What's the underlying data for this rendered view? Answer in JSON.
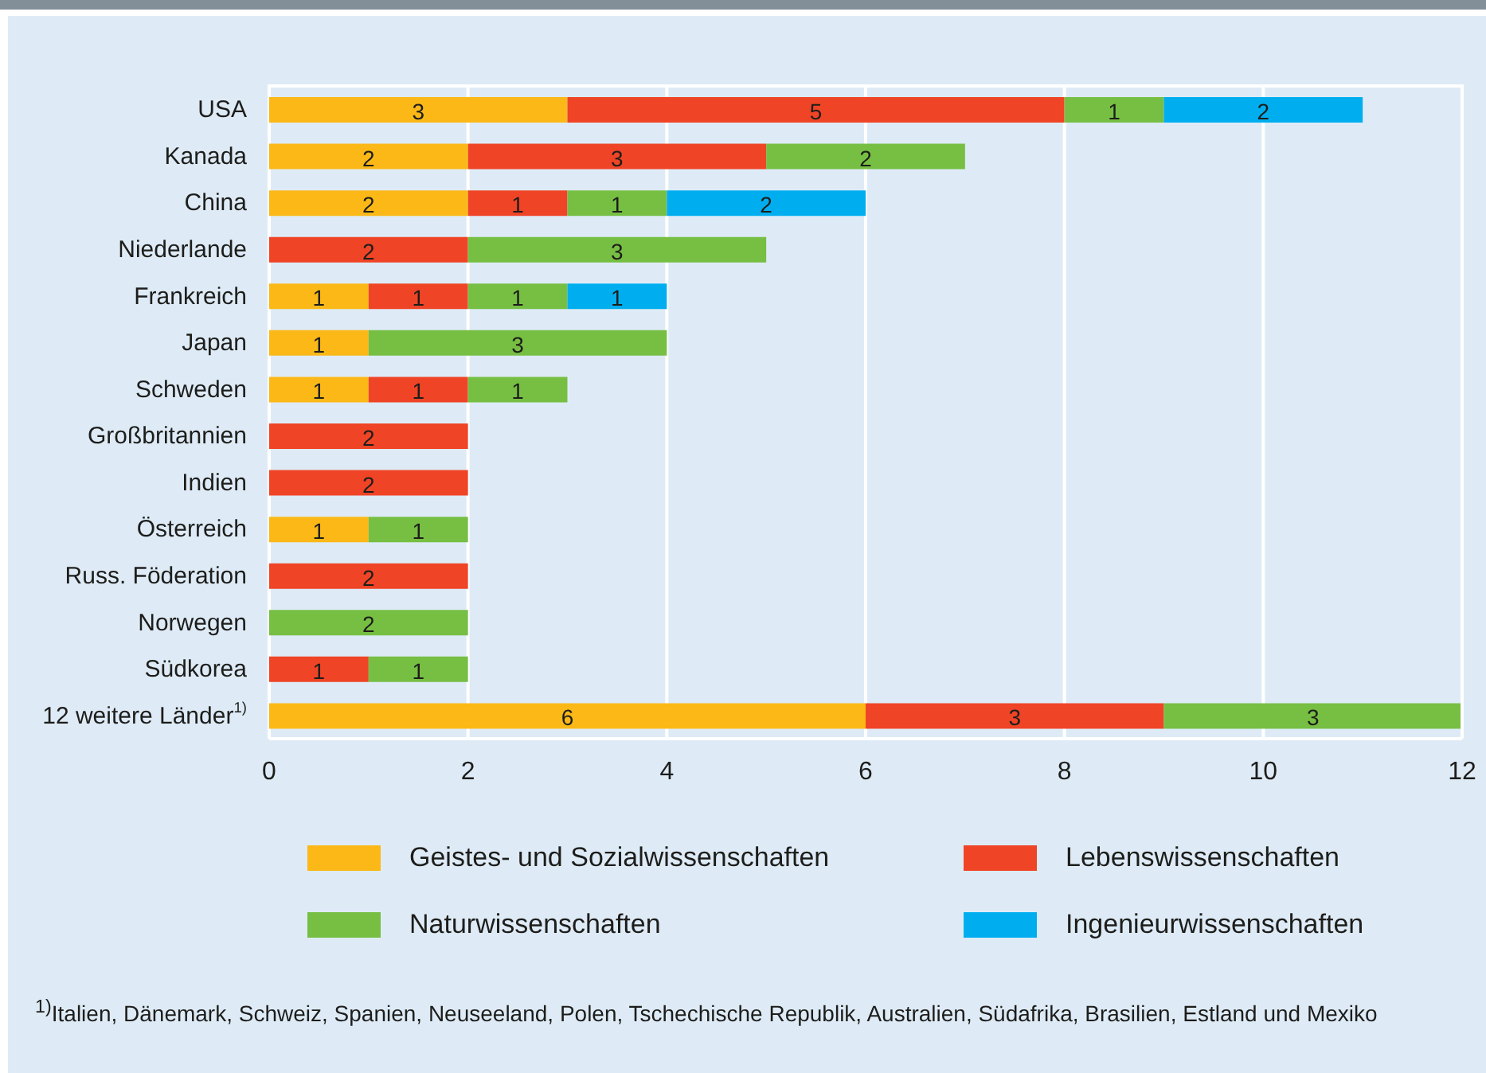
{
  "chart_data": {
    "type": "bar",
    "orientation": "horizontal",
    "stacked": true,
    "categories": [
      "USA",
      "Kanada",
      "China",
      "Niederlande",
      "Frankreich",
      "Japan",
      "Schweden",
      "Großbritannien",
      "Indien",
      "Österreich",
      "Russ. Föderation",
      "Norwegen",
      "Südkorea",
      "12 weitere Länder$^{1)}$"
    ],
    "series": [
      {
        "name": "Geistes- und Sozialwissenschaften",
        "color": "#fbb817",
        "values": [
          3,
          2,
          2,
          null,
          1,
          1,
          1,
          null,
          null,
          1,
          null,
          null,
          null,
          6
        ]
      },
      {
        "name": "Lebenswissenschaften",
        "color": "#ef4426",
        "values": [
          5,
          3,
          1,
          2,
          1,
          null,
          1,
          2,
          2,
          null,
          2,
          null,
          1,
          3
        ]
      },
      {
        "name": "Naturwissenschaften",
        "color": "#76bf43",
        "values": [
          1,
          2,
          1,
          3,
          1,
          3,
          1,
          null,
          null,
          1,
          null,
          2,
          1,
          3
        ]
      },
      {
        "name": "Ingenieurwissenschaften",
        "color": "#00aeef",
        "values": [
          2,
          null,
          2,
          null,
          1,
          null,
          null,
          null,
          null,
          null,
          null,
          null,
          null,
          null
        ]
      }
    ],
    "xlim": [
      0,
      12
    ],
    "xticks": [
      0,
      2,
      4,
      6,
      8,
      10,
      12
    ],
    "grid": "x",
    "legend": "bottom",
    "data_labels": true,
    "annotations": [
      "$^{1)}$Italien, Dänemark, Schweiz, Spanien, Neuseeland, Polen, Tschechische Republik, Australien, Südafrika, Brasilien, Estland und Mexiko"
    ]
  }
}
